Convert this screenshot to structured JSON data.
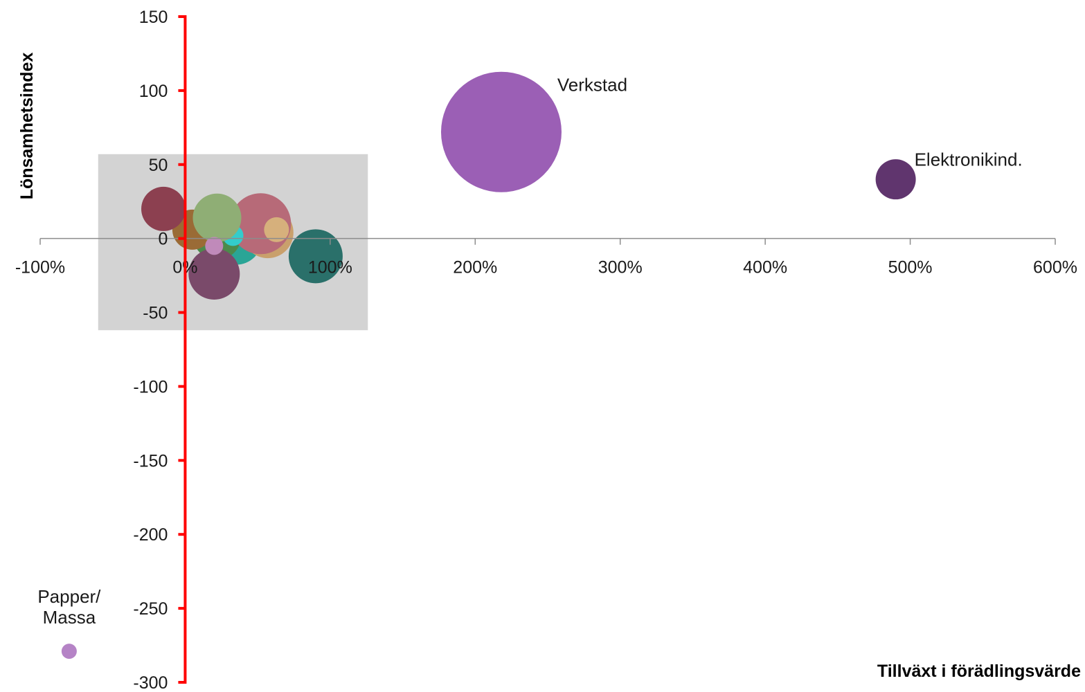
{
  "chart_data": {
    "type": "bubble",
    "xlabel": "Tillväxt i förädlingsvärde",
    "ylabel": "Lönsamhetsindex",
    "xlim": [
      -100,
      600
    ],
    "ylim": [
      -300,
      150
    ],
    "x_unit": "%",
    "x_ticks": [
      -100,
      0,
      100,
      200,
      300,
      400,
      500,
      600
    ],
    "x_tick_labels": [
      "-100%",
      "0%",
      "100%",
      "200%",
      "300%",
      "400%",
      "500%",
      "600%"
    ],
    "y_ticks": [
      150,
      100,
      50,
      0,
      -50,
      -100,
      -150,
      -200,
      -250,
      -300
    ],
    "y_tick_labels": [
      "150",
      "100",
      "50",
      "0",
      "-50",
      "-100",
      "-150",
      "-200",
      "-250",
      "-300"
    ],
    "grid": false,
    "legend": "none",
    "highlight_region": {
      "x": [
        -60,
        126
      ],
      "y": [
        -62,
        57
      ],
      "color": "#d3d3d3"
    },
    "axis_colors": {
      "y_axis": "#ff0000",
      "x_axis": "#8c8c8c"
    },
    "series": [
      {
        "label": "",
        "x": 35,
        "y": 0,
        "size": 38,
        "color": "#2aa596"
      },
      {
        "label": "",
        "x": 22,
        "y": 2,
        "size": 35,
        "color": "#4c8a4c"
      },
      {
        "label": "",
        "x": 57,
        "y": 4,
        "size": 37,
        "color": "#c9a06c"
      },
      {
        "label": "",
        "x": 52,
        "y": 10,
        "size": 44,
        "color": "#b76a78"
      },
      {
        "label": "",
        "x": 5,
        "y": 6,
        "size": 29,
        "color": "#9a6b36"
      },
      {
        "label": "",
        "x": 33,
        "y": 2,
        "size": 15,
        "color": "#33cccc"
      },
      {
        "label": "",
        "x": 63,
        "y": 6,
        "size": 18,
        "color": "#d6b07c"
      },
      {
        "label": "",
        "x": -15,
        "y": 20,
        "size": 32,
        "color": "#8c4050"
      },
      {
        "label": "",
        "x": 22,
        "y": 14,
        "size": 35,
        "color": "#8fae75"
      },
      {
        "label": "",
        "x": 20,
        "y": -24,
        "size": 37,
        "color": "#7a4a6a"
      },
      {
        "label": "",
        "x": 20,
        "y": -5,
        "size": 13,
        "color": "#c08aba"
      },
      {
        "label": "",
        "x": 90,
        "y": -12,
        "size": 39,
        "color": "#2a706a"
      },
      {
        "label": "Verkstad",
        "x": 218,
        "y": 72,
        "size": 87,
        "color": "#9b5fb5"
      },
      {
        "label": "Elektronikind.",
        "x": 490,
        "y": 40,
        "size": 29,
        "color": "#60356e"
      },
      {
        "label": "Papper/\nMassa",
        "x": -80,
        "y": -279,
        "size": 11,
        "color": "#b583c6"
      }
    ]
  }
}
